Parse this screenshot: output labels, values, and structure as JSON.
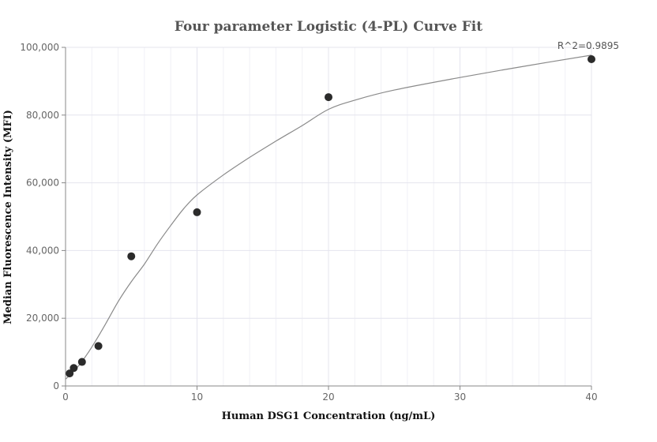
{
  "chart_data": {
    "type": "scatter",
    "title": "Four parameter Logistic (4-PL) Curve Fit",
    "xlabel": "Human DSG1 Concentration (ng/mL)",
    "ylabel": "Median Fluorescence Intensity (MFI)",
    "xlim": [
      0,
      40
    ],
    "ylim": [
      0,
      100000
    ],
    "x_ticks": [
      0,
      10,
      20,
      30,
      40
    ],
    "x_tick_labels": [
      "0",
      "10",
      "20",
      "30",
      "40"
    ],
    "y_ticks": [
      0,
      20000,
      40000,
      60000,
      80000,
      100000
    ],
    "y_tick_labels": [
      "0",
      "20,000",
      "40,000",
      "60,000",
      "80,000",
      "100,000"
    ],
    "grid": true,
    "points": {
      "x": [
        0.3125,
        0.625,
        1.25,
        2.5,
        5,
        10,
        20,
        40
      ],
      "y": [
        3700,
        5300,
        7100,
        11800,
        38300,
        51300,
        85300,
        96500
      ]
    },
    "fit_curve": {
      "x": [
        0,
        0.5,
        1,
        1.5,
        2,
        3,
        4,
        5,
        6,
        7,
        8,
        9,
        10,
        12,
        14,
        16,
        18,
        20,
        22,
        25,
        30,
        35,
        40
      ],
      "y": [
        2000,
        3800,
        6000,
        8600,
        11500,
        18000,
        24900,
        30800,
        36000,
        42000,
        47400,
        52400,
        56400,
        62300,
        67500,
        72300,
        76900,
        81700,
        84400,
        87400,
        91100,
        94500,
        97700
      ]
    },
    "annotation": "R^2=0.9895"
  }
}
